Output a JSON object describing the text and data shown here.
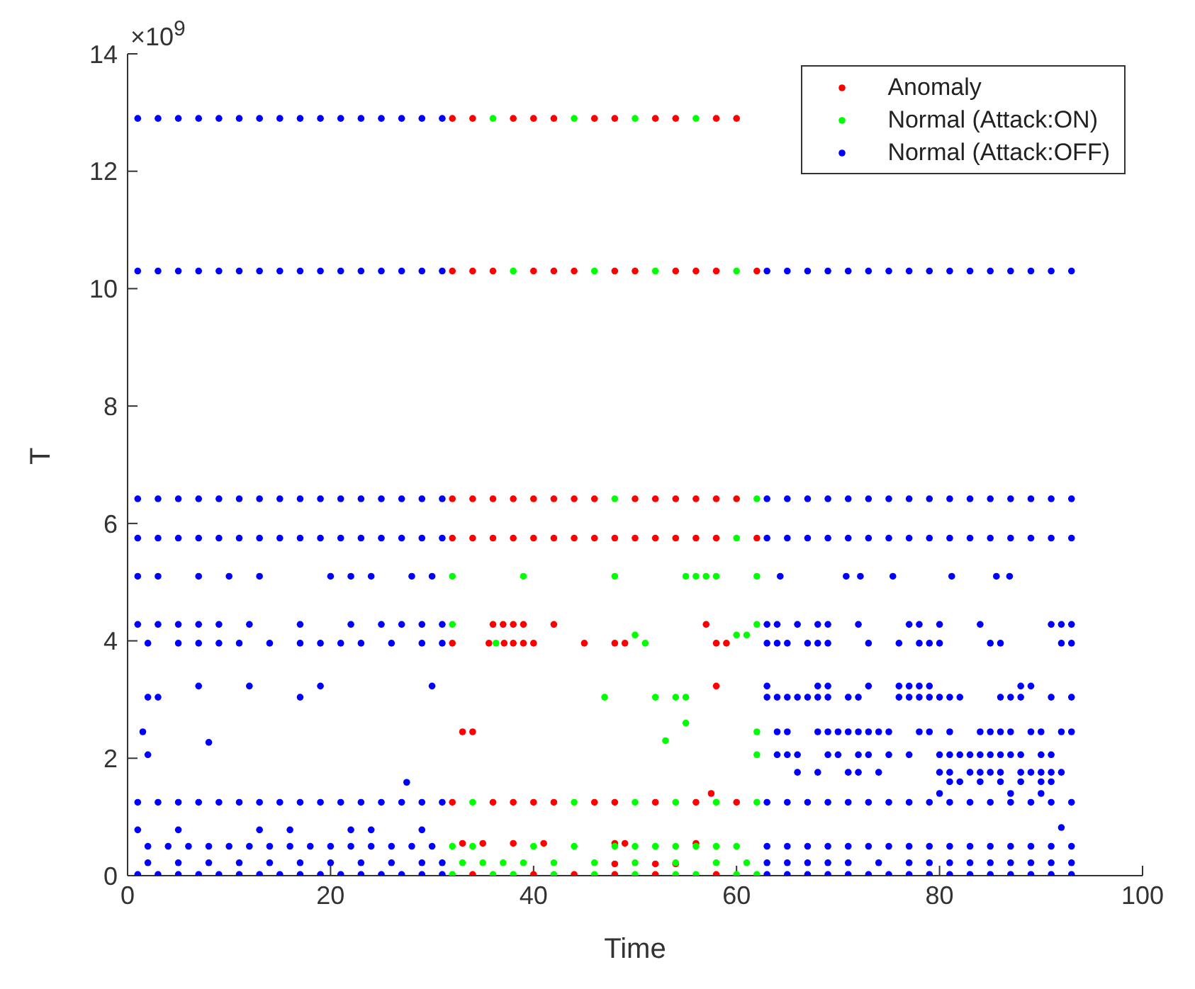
{
  "chart_data": {
    "type": "scatter",
    "xlabel": "Time",
    "ylabel": "T",
    "annotations": [
      "×10$^{9}$"
    ],
    "xlim": [
      0,
      100
    ],
    "xticks": [
      0,
      20,
      40,
      60,
      80,
      100
    ],
    "ylim": [
      0,
      14
    ],
    "yticks": [
      0,
      2,
      4,
      6,
      8,
      10,
      12,
      14
    ],
    "grid": false,
    "legend": "top right",
    "marker": "circle",
    "series": [
      {
        "name": "Anomaly",
        "color": "#ff0000",
        "x": [
          32,
          34,
          38,
          40,
          42,
          46,
          48,
          52,
          54,
          58,
          60,
          32,
          34,
          36,
          40,
          42,
          44,
          48,
          50,
          54,
          56,
          58,
          62,
          32,
          34,
          36,
          38,
          40,
          42,
          44,
          46,
          50,
          52,
          54,
          56,
          58,
          60,
          32,
          34,
          36,
          38,
          40,
          42,
          44,
          46,
          48,
          50,
          52,
          54,
          56,
          58,
          62,
          32,
          36,
          38,
          40,
          42,
          46,
          48,
          52,
          56,
          60,
          34,
          40,
          44,
          48,
          52,
          58,
          36,
          37,
          38,
          39,
          42,
          57,
          32,
          35.6,
          37.1,
          38,
          39,
          40,
          45,
          48,
          49,
          58,
          59,
          33,
          34,
          33,
          35,
          38,
          41,
          48,
          49,
          56,
          58,
          57.5,
          48,
          52,
          54
        ],
        "values": [
          12.9,
          12.9,
          12.9,
          12.9,
          12.9,
          12.9,
          12.9,
          12.9,
          12.9,
          12.9,
          12.9,
          10.3,
          10.3,
          10.3,
          10.3,
          10.3,
          10.3,
          10.3,
          10.3,
          10.3,
          10.3,
          10.3,
          10.3,
          6.42,
          6.42,
          6.42,
          6.42,
          6.42,
          6.42,
          6.42,
          6.42,
          6.42,
          6.42,
          6.42,
          6.42,
          6.42,
          6.42,
          5.75,
          5.75,
          5.75,
          5.75,
          5.75,
          5.75,
          5.75,
          5.75,
          5.75,
          5.75,
          5.75,
          5.75,
          5.75,
          5.75,
          5.75,
          1.25,
          1.25,
          1.25,
          1.25,
          1.25,
          1.25,
          1.25,
          1.25,
          1.25,
          1.25,
          0.02,
          0.02,
          0.02,
          0.02,
          0.02,
          0.02,
          4.28,
          4.28,
          4.28,
          4.28,
          4.28,
          4.28,
          3.96,
          3.96,
          3.96,
          3.96,
          3.96,
          3.96,
          3.96,
          3.96,
          3.96,
          3.96,
          3.96,
          2.45,
          2.45,
          0.55,
          0.55,
          0.55,
          0.55,
          0.55,
          0.55,
          0.55,
          3.23,
          1.4,
          0.2,
          0.2,
          0.2
        ]
      },
      {
        "name": "Normal (Attack:ON)",
        "color": "#00ff00",
        "x": [
          36,
          44,
          50,
          56,
          38,
          46,
          52,
          60,
          48,
          62,
          60,
          34,
          44,
          50,
          54,
          58,
          62,
          32,
          36,
          38,
          42,
          46,
          50,
          54,
          56,
          60,
          62,
          32,
          39,
          48,
          55,
          56,
          57,
          58,
          62,
          32,
          62,
          50,
          60,
          61,
          36.3,
          51,
          47,
          52,
          54,
          55,
          55,
          53,
          62,
          62,
          32,
          34,
          40,
          44,
          48,
          50,
          52,
          54,
          56,
          58,
          60,
          33,
          35,
          37,
          39,
          42,
          46,
          50,
          54,
          58,
          61
        ],
        "values": [
          12.9,
          12.9,
          12.9,
          12.9,
          10.3,
          10.3,
          10.3,
          10.3,
          6.42,
          6.42,
          5.75,
          1.25,
          1.25,
          1.25,
          1.25,
          1.25,
          1.25,
          0.02,
          0.02,
          0.02,
          0.02,
          0.02,
          0.02,
          0.02,
          0.02,
          0.02,
          0.02,
          5.1,
          5.1,
          5.1,
          5.1,
          5.1,
          5.1,
          5.1,
          5.1,
          4.28,
          4.28,
          4.1,
          4.1,
          4.1,
          3.96,
          3.96,
          3.04,
          3.04,
          3.04,
          3.04,
          2.6,
          2.3,
          2.45,
          2.06,
          0.5,
          0.5,
          0.5,
          0.5,
          0.5,
          0.5,
          0.5,
          0.5,
          0.5,
          0.5,
          0.5,
          0.22,
          0.22,
          0.22,
          0.22,
          0.22,
          0.22,
          0.22,
          0.22,
          0.22,
          0.22
        ]
      },
      {
        "name": "Normal (Attack:OFF)",
        "color": "#0000ff",
        "x": [
          1,
          3,
          5,
          7,
          9,
          11,
          13,
          15,
          17,
          19,
          21,
          23,
          25,
          27,
          29,
          31,
          1,
          3,
          5,
          7,
          9,
          11,
          13,
          15,
          17,
          19,
          21,
          23,
          25,
          27,
          29,
          31,
          63,
          65,
          67,
          69,
          71,
          73,
          75,
          77,
          79,
          81,
          83,
          85,
          87,
          89,
          91,
          93,
          1,
          3,
          5,
          7,
          9,
          11,
          13,
          15,
          17,
          19,
          21,
          23,
          25,
          27,
          29,
          31,
          63,
          65,
          67,
          69,
          71,
          73,
          75,
          77,
          79,
          81,
          83,
          85,
          87,
          89,
          91,
          93,
          1,
          3,
          5,
          7,
          9,
          11,
          13,
          15,
          17,
          19,
          21,
          23,
          25,
          27,
          29,
          31,
          63,
          65,
          67,
          69,
          71,
          73,
          75,
          77,
          79,
          81,
          83,
          85,
          87,
          89,
          91,
          93,
          1,
          3,
          5,
          7,
          9,
          11,
          13,
          15,
          17,
          19,
          21,
          23,
          25,
          27,
          29,
          31,
          63,
          65,
          67,
          69,
          71,
          73,
          75,
          77,
          79,
          81,
          83,
          85,
          87,
          89,
          91,
          93,
          1,
          3,
          5,
          7,
          9,
          11,
          13,
          15,
          17,
          19,
          21,
          23,
          25,
          27,
          29,
          31,
          63,
          65,
          67,
          69,
          71,
          73,
          75,
          77,
          79,
          81,
          83,
          85,
          87,
          89,
          91,
          93,
          1,
          3,
          7,
          10,
          13,
          20,
          22,
          24,
          28,
          30,
          1,
          3,
          5,
          7,
          9,
          12,
          17,
          22,
          25,
          27,
          29,
          31,
          2,
          5,
          7,
          9,
          11,
          14,
          17,
          19,
          21,
          23,
          26,
          29,
          31,
          7,
          12,
          19,
          30,
          2,
          3,
          17,
          1.5,
          2,
          8,
          27.5,
          1,
          5,
          13,
          16,
          22,
          24,
          29,
          2,
          4,
          6,
          8,
          10,
          12,
          14,
          16,
          18,
          20,
          22,
          24,
          26,
          28,
          30,
          2,
          5,
          8,
          11,
          14,
          17,
          20,
          23,
          26,
          29,
          31,
          64.3,
          70.8,
          72.2,
          75.4,
          81.2,
          85.6,
          86.9,
          63,
          64,
          66,
          68,
          69,
          72,
          77,
          78,
          80,
          84,
          91,
          92,
          93,
          63,
          64,
          65,
          67,
          68,
          69,
          73,
          76,
          78,
          79,
          80,
          85,
          86,
          92,
          93,
          63,
          68,
          69,
          73,
          76,
          77,
          78,
          79,
          88,
          89,
          63,
          64,
          65,
          66,
          67,
          68,
          69,
          71,
          72,
          76,
          77,
          78,
          79,
          80,
          81,
          82,
          86,
          87,
          88,
          91,
          93,
          64,
          65,
          68,
          69,
          70,
          71,
          72,
          73,
          74,
          75,
          78,
          79,
          81,
          84,
          85,
          86,
          87,
          89,
          90,
          92,
          93,
          64,
          65,
          66,
          69,
          70,
          72,
          73,
          75,
          77,
          80,
          81,
          82,
          83,
          84,
          85,
          86,
          87,
          88,
          90,
          91,
          66,
          68,
          71,
          72,
          74,
          80,
          81,
          83,
          84,
          85,
          86,
          88,
          89,
          90,
          91,
          92,
          81,
          82,
          84,
          86,
          88,
          90,
          91,
          80,
          87,
          90,
          92,
          63,
          65,
          67,
          69,
          71,
          73,
          75,
          77,
          79,
          81,
          83,
          85,
          87,
          89,
          91,
          93,
          63,
          65,
          67,
          69,
          71,
          74,
          77,
          79,
          81,
          83,
          85,
          87,
          89,
          91,
          93
        ],
        "values": [
          12.9,
          12.9,
          12.9,
          12.9,
          12.9,
          12.9,
          12.9,
          12.9,
          12.9,
          12.9,
          12.9,
          12.9,
          12.9,
          12.9,
          12.9,
          12.9,
          10.3,
          10.3,
          10.3,
          10.3,
          10.3,
          10.3,
          10.3,
          10.3,
          10.3,
          10.3,
          10.3,
          10.3,
          10.3,
          10.3,
          10.3,
          10.3,
          10.3,
          10.3,
          10.3,
          10.3,
          10.3,
          10.3,
          10.3,
          10.3,
          10.3,
          10.3,
          10.3,
          10.3,
          10.3,
          10.3,
          10.3,
          10.3,
          6.42,
          6.42,
          6.42,
          6.42,
          6.42,
          6.42,
          6.42,
          6.42,
          6.42,
          6.42,
          6.42,
          6.42,
          6.42,
          6.42,
          6.42,
          6.42,
          6.42,
          6.42,
          6.42,
          6.42,
          6.42,
          6.42,
          6.42,
          6.42,
          6.42,
          6.42,
          6.42,
          6.42,
          6.42,
          6.42,
          6.42,
          6.42,
          5.75,
          5.75,
          5.75,
          5.75,
          5.75,
          5.75,
          5.75,
          5.75,
          5.75,
          5.75,
          5.75,
          5.75,
          5.75,
          5.75,
          5.75,
          5.75,
          5.75,
          5.75,
          5.75,
          5.75,
          5.75,
          5.75,
          5.75,
          5.75,
          5.75,
          5.75,
          5.75,
          5.75,
          5.75,
          5.75,
          5.75,
          5.75,
          1.25,
          1.25,
          1.25,
          1.25,
          1.25,
          1.25,
          1.25,
          1.25,
          1.25,
          1.25,
          1.25,
          1.25,
          1.25,
          1.25,
          1.25,
          1.25,
          1.25,
          1.25,
          1.25,
          1.25,
          1.25,
          1.25,
          1.25,
          1.25,
          1.25,
          1.25,
          1.25,
          1.25,
          1.25,
          1.25,
          1.25,
          1.25,
          0.02,
          0.02,
          0.02,
          0.02,
          0.02,
          0.02,
          0.02,
          0.02,
          0.02,
          0.02,
          0.02,
          0.02,
          0.02,
          0.02,
          0.02,
          0.02,
          0.02,
          0.02,
          0.02,
          0.02,
          0.02,
          0.02,
          0.02,
          0.02,
          0.02,
          0.02,
          0.02,
          0.02,
          0.02,
          0.02,
          0.02,
          0.02,
          5.1,
          5.1,
          5.1,
          5.1,
          5.1,
          5.1,
          5.1,
          5.1,
          5.1,
          5.1,
          4.28,
          4.28,
          4.28,
          4.28,
          4.28,
          4.28,
          4.28,
          4.28,
          4.28,
          4.28,
          4.28,
          4.28,
          3.96,
          3.96,
          3.96,
          3.96,
          3.96,
          3.96,
          3.96,
          3.96,
          3.96,
          3.96,
          3.96,
          3.96,
          3.96,
          3.23,
          3.23,
          3.23,
          3.23,
          3.04,
          3.04,
          3.04,
          2.45,
          2.06,
          2.27,
          1.59,
          0.78,
          0.78,
          0.78,
          0.78,
          0.78,
          0.78,
          0.78,
          0.5,
          0.5,
          0.5,
          0.5,
          0.5,
          0.5,
          0.5,
          0.5,
          0.5,
          0.5,
          0.5,
          0.5,
          0.5,
          0.5,
          0.5,
          0.22,
          0.22,
          0.22,
          0.22,
          0.22,
          0.22,
          0.22,
          0.22,
          0.22,
          0.22,
          0.22,
          5.1,
          5.1,
          5.1,
          5.1,
          5.1,
          5.1,
          5.1,
          4.28,
          4.28,
          4.28,
          4.28,
          4.28,
          4.28,
          4.28,
          4.28,
          4.28,
          4.28,
          4.28,
          4.28,
          4.28,
          3.96,
          3.96,
          3.96,
          3.96,
          3.96,
          3.96,
          3.96,
          3.96,
          3.96,
          3.96,
          3.96,
          3.96,
          3.96,
          3.96,
          3.96,
          3.23,
          3.23,
          3.23,
          3.23,
          3.23,
          3.23,
          3.23,
          3.23,
          3.23,
          3.23,
          3.04,
          3.04,
          3.04,
          3.04,
          3.04,
          3.04,
          3.04,
          3.04,
          3.04,
          3.04,
          3.04,
          3.04,
          3.04,
          3.04,
          3.04,
          3.04,
          3.04,
          3.04,
          3.04,
          3.04,
          3.04,
          2.45,
          2.45,
          2.45,
          2.45,
          2.45,
          2.45,
          2.45,
          2.45,
          2.45,
          2.45,
          2.45,
          2.45,
          2.45,
          2.45,
          2.45,
          2.45,
          2.45,
          2.45,
          2.45,
          2.45,
          2.45,
          2.06,
          2.06,
          2.06,
          2.06,
          2.06,
          2.06,
          2.06,
          2.06,
          2.06,
          2.06,
          2.06,
          2.06,
          2.06,
          2.06,
          2.06,
          2.06,
          2.06,
          2.06,
          2.06,
          2.06,
          1.76,
          1.76,
          1.76,
          1.76,
          1.76,
          1.76,
          1.76,
          1.76,
          1.76,
          1.76,
          1.76,
          1.76,
          1.76,
          1.76,
          1.76,
          1.76,
          1.6,
          1.6,
          1.6,
          1.6,
          1.6,
          1.6,
          1.6,
          1.4,
          1.4,
          1.4,
          0.82,
          0.5,
          0.5,
          0.5,
          0.5,
          0.5,
          0.5,
          0.5,
          0.5,
          0.5,
          0.5,
          0.5,
          0.5,
          0.5,
          0.5,
          0.5,
          0.5,
          0.22,
          0.22,
          0.22,
          0.22,
          0.22,
          0.22,
          0.22,
          0.22,
          0.22,
          0.22,
          0.22,
          0.22,
          0.22,
          0.22,
          0.22
        ]
      }
    ]
  }
}
